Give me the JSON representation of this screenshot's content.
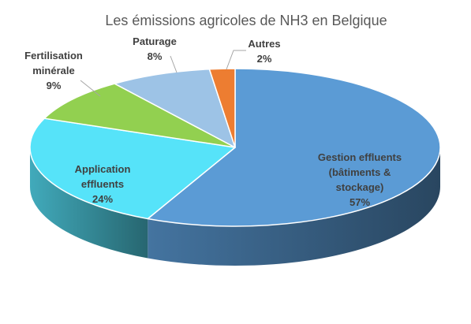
{
  "chart_data": {
    "type": "pie",
    "title": "Les émissions agricoles de NH3 en Belgique",
    "slices": [
      {
        "label_lines": [
          "Gestion effluents",
          "(bâtiments &",
          "stockage)"
        ],
        "value_label": "57%",
        "value": 57,
        "color": "#5B9BD5"
      },
      {
        "label_lines": [
          "Application",
          "effluents"
        ],
        "value_label": "24%",
        "value": 24,
        "color": "#56E3F9"
      },
      {
        "label_lines": [
          "Fertilisation",
          "minérale"
        ],
        "value_label": "9%",
        "value": 9,
        "color": "#92D050"
      },
      {
        "label_lines": [
          "Paturage"
        ],
        "value_label": "8%",
        "value": 8,
        "color": "#9DC3E6"
      },
      {
        "label_lines": [
          "Autres"
        ],
        "value_label": "2%",
        "value": 2,
        "color": "#ED7D31"
      }
    ],
    "legend": "none",
    "style": "3d"
  }
}
